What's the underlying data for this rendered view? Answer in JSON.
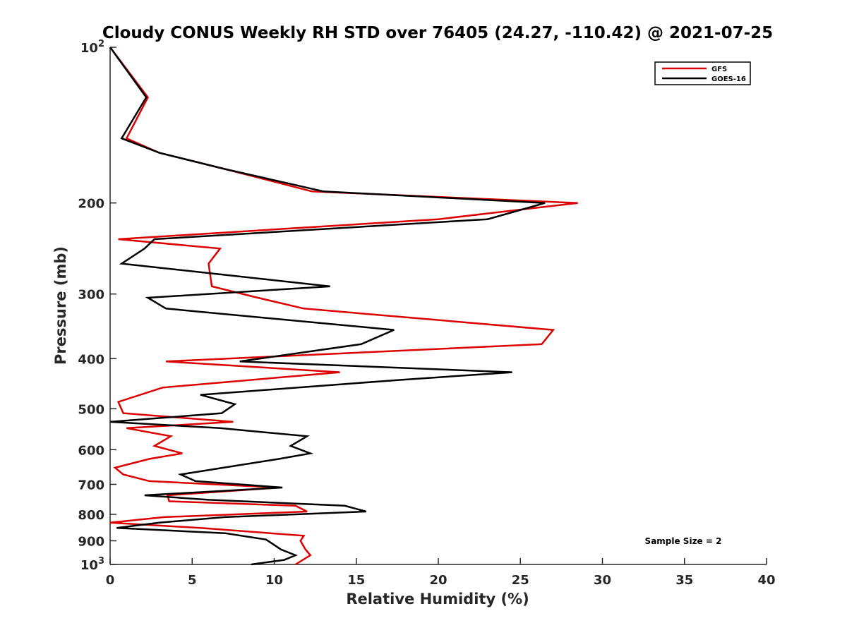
{
  "chart_data": {
    "type": "line",
    "title": "Cloudy CONUS Weekly RH STD over 76405 (24.27, -110.42) @ 2021-07-25",
    "xlabel": "Relative Humidity (%)",
    "ylabel": "Pressure (mb)",
    "xlim": [
      0,
      40
    ],
    "ylim": [
      100,
      1000
    ],
    "yscale": "log",
    "y_reversed": true,
    "x_ticks": [
      0,
      5,
      10,
      15,
      20,
      25,
      30,
      35,
      40
    ],
    "x_tick_labels": [
      "0",
      "5",
      "10",
      "15",
      "20",
      "25",
      "30",
      "35",
      "40"
    ],
    "y_ticks": [
      100,
      200,
      300,
      400,
      500,
      600,
      700,
      800,
      900,
      1000
    ],
    "y_tick_labels": [
      {
        "base": "10",
        "exp": "2"
      },
      {
        "base": "200",
        "exp": ""
      },
      {
        "base": "300",
        "exp": ""
      },
      {
        "base": "400",
        "exp": ""
      },
      {
        "base": "500",
        "exp": ""
      },
      {
        "base": "600",
        "exp": ""
      },
      {
        "base": "700",
        "exp": ""
      },
      {
        "base": "800",
        "exp": ""
      },
      {
        "base": "900",
        "exp": ""
      },
      {
        "base": "10",
        "exp": "3"
      }
    ],
    "grid": false,
    "legend_position": "top-right",
    "annotation": "Sample Size = 2",
    "series": [
      {
        "name": "GFS",
        "color": "#dd0000",
        "points": [
          [
            0.0,
            100
          ],
          [
            2.3,
            125
          ],
          [
            1.0,
            150
          ],
          [
            3.0,
            160
          ],
          [
            7.0,
            172
          ],
          [
            12.3,
            190
          ],
          [
            28.5,
            200
          ],
          [
            20.0,
            215
          ],
          [
            0.5,
            235
          ],
          [
            6.7,
            245
          ],
          [
            6.0,
            262
          ],
          [
            6.2,
            290
          ],
          [
            9.0,
            305
          ],
          [
            11.8,
            320
          ],
          [
            27.0,
            352
          ],
          [
            26.3,
            375
          ],
          [
            3.4,
            405
          ],
          [
            14.0,
            425
          ],
          [
            3.2,
            455
          ],
          [
            0.5,
            485
          ],
          [
            0.8,
            510
          ],
          [
            7.5,
            530
          ],
          [
            1.0,
            545
          ],
          [
            3.7,
            565
          ],
          [
            2.7,
            590
          ],
          [
            4.4,
            610
          ],
          [
            2.4,
            625
          ],
          [
            0.3,
            650
          ],
          [
            0.8,
            670
          ],
          [
            2.4,
            690
          ],
          [
            10.3,
            710
          ],
          [
            3.5,
            735
          ],
          [
            3.6,
            755
          ],
          [
            11.3,
            770
          ],
          [
            12.0,
            790
          ],
          [
            3.3,
            810
          ],
          [
            0.0,
            830
          ],
          [
            5.5,
            850
          ],
          [
            11.8,
            880
          ],
          [
            11.6,
            900
          ],
          [
            11.9,
            935
          ],
          [
            12.2,
            960
          ],
          [
            11.3,
            1000
          ]
        ]
      },
      {
        "name": "GOES-16",
        "color": "#000000",
        "points": [
          [
            0.0,
            100
          ],
          [
            2.2,
            125
          ],
          [
            0.7,
            150
          ],
          [
            3.0,
            160
          ],
          [
            7.0,
            172
          ],
          [
            13.0,
            190
          ],
          [
            26.5,
            200
          ],
          [
            23.0,
            215
          ],
          [
            2.7,
            235
          ],
          [
            2.1,
            245
          ],
          [
            0.7,
            262
          ],
          [
            13.4,
            290
          ],
          [
            2.3,
            305
          ],
          [
            3.4,
            320
          ],
          [
            17.3,
            352
          ],
          [
            15.3,
            375
          ],
          [
            7.9,
            405
          ],
          [
            24.5,
            425
          ],
          [
            17.5,
            440
          ],
          [
            5.5,
            470
          ],
          [
            7.6,
            490
          ],
          [
            6.8,
            510
          ],
          [
            0.0,
            530
          ],
          [
            6.7,
            545
          ],
          [
            12.0,
            565
          ],
          [
            11.0,
            590
          ],
          [
            12.2,
            610
          ],
          [
            10.3,
            625
          ],
          [
            6.9,
            650
          ],
          [
            4.3,
            670
          ],
          [
            5.2,
            690
          ],
          [
            10.5,
            710
          ],
          [
            2.1,
            735
          ],
          [
            6.0,
            750
          ],
          [
            14.3,
            770
          ],
          [
            15.6,
            790
          ],
          [
            7.0,
            810
          ],
          [
            3.0,
            830
          ],
          [
            0.4,
            850
          ],
          [
            7.0,
            870
          ],
          [
            9.5,
            895
          ],
          [
            10.4,
            935
          ],
          [
            11.3,
            960
          ],
          [
            10.6,
            980
          ],
          [
            8.6,
            1000
          ]
        ]
      }
    ]
  }
}
